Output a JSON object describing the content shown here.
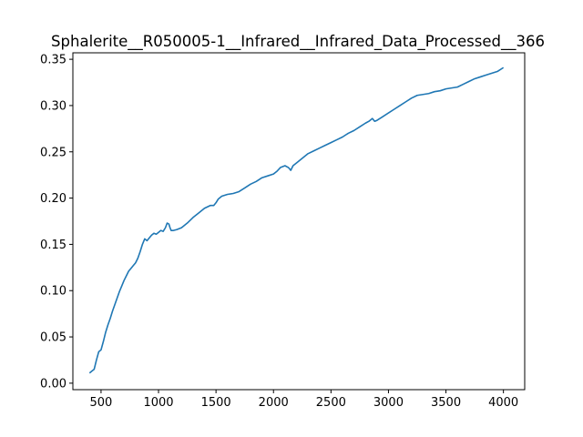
{
  "chart_data": {
    "type": "line",
    "title": "Sphalerite__R050005-1__Infrared__Infrared_Data_Processed__366",
    "xlabel": "",
    "ylabel": "",
    "xlim": [
      255,
      4185
    ],
    "ylim": [
      -0.007,
      0.357
    ],
    "grid": false,
    "legend": "none",
    "color": "#1f77b4",
    "x_ticks": [
      500,
      1000,
      1500,
      2000,
      2500,
      3000,
      3500,
      4000
    ],
    "x_tick_labels": [
      "500",
      "1000",
      "1500",
      "2000",
      "2500",
      "3000",
      "3500",
      "4000"
    ],
    "y_ticks": [
      0.0,
      0.05,
      0.1,
      0.15,
      0.2,
      0.25,
      0.3,
      0.35
    ],
    "y_tick_labels": [
      "0.00",
      "0.05",
      "0.10",
      "0.15",
      "0.20",
      "0.25",
      "0.30",
      "0.35"
    ],
    "series": [
      {
        "x": [
          400,
          420,
          440,
          460,
          480,
          500,
          520,
          540,
          560,
          580,
          600,
          620,
          640,
          660,
          680,
          700,
          720,
          740,
          760,
          780,
          800,
          820,
          840,
          860,
          880,
          900,
          920,
          940,
          960,
          980,
          1000,
          1020,
          1040,
          1060,
          1075,
          1090,
          1100,
          1110,
          1130,
          1160,
          1200,
          1250,
          1300,
          1350,
          1400,
          1450,
          1480,
          1500,
          1520,
          1550,
          1600,
          1650,
          1700,
          1750,
          1800,
          1850,
          1900,
          1950,
          2000,
          2030,
          2060,
          2100,
          2130,
          2150,
          2170,
          2200,
          2250,
          2300,
          2350,
          2400,
          2450,
          2500,
          2550,
          2600,
          2650,
          2700,
          2750,
          2800,
          2830,
          2860,
          2880,
          2900,
          2950,
          3000,
          3050,
          3100,
          3150,
          3200,
          3250,
          3300,
          3350,
          3400,
          3450,
          3500,
          3550,
          3600,
          3650,
          3700,
          3750,
          3800,
          3850,
          3900,
          3950,
          4000
        ],
        "y": [
          0.011,
          0.013,
          0.015,
          0.025,
          0.034,
          0.036,
          0.045,
          0.055,
          0.063,
          0.07,
          0.078,
          0.085,
          0.092,
          0.099,
          0.105,
          0.111,
          0.116,
          0.121,
          0.124,
          0.127,
          0.13,
          0.135,
          0.142,
          0.15,
          0.156,
          0.154,
          0.157,
          0.16,
          0.162,
          0.161,
          0.163,
          0.165,
          0.164,
          0.168,
          0.173,
          0.172,
          0.168,
          0.165,
          0.165,
          0.166,
          0.168,
          0.173,
          0.179,
          0.184,
          0.189,
          0.192,
          0.192,
          0.195,
          0.199,
          0.202,
          0.204,
          0.205,
          0.207,
          0.211,
          0.215,
          0.218,
          0.222,
          0.224,
          0.226,
          0.229,
          0.233,
          0.235,
          0.233,
          0.23,
          0.235,
          0.238,
          0.243,
          0.248,
          0.251,
          0.254,
          0.257,
          0.26,
          0.263,
          0.266,
          0.27,
          0.273,
          0.277,
          0.281,
          0.283,
          0.286,
          0.283,
          0.284,
          0.288,
          0.292,
          0.296,
          0.3,
          0.304,
          0.308,
          0.311,
          0.312,
          0.313,
          0.315,
          0.316,
          0.318,
          0.319,
          0.32,
          0.323,
          0.326,
          0.329,
          0.331,
          0.333,
          0.335,
          0.337,
          0.341
        ]
      }
    ]
  }
}
